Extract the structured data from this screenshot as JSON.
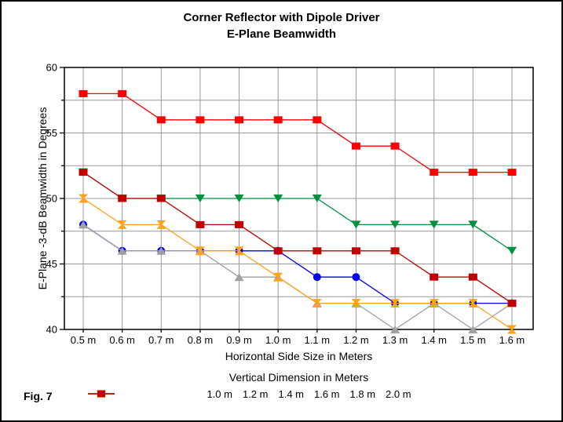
{
  "figure": {
    "title_line1": "Corner Reflector with Dipole Driver",
    "title_line2": "E-Plane Beamwidth",
    "fig_label": "Fig. 7"
  },
  "chart_data": {
    "type": "line",
    "title": "Corner Reflector with Dipole Driver",
    "subtitle": "E-Plane Beamwidth",
    "xlabel": "Horizontal Side Size in Meters",
    "ylabel": "E-Plane -3-dB Beamwidth in Degrees",
    "legend_title": "Vertical Dimension in Meters",
    "legend_position": "bottom",
    "grid": true,
    "categories": [
      "0.5 m",
      "0.6 m",
      "0.7 m",
      "0.8 m",
      "0.9 m",
      "1.0 m",
      "1.1 m",
      "1.2 m",
      "1.3 m",
      "1.4 m",
      "1.5 m",
      "1.6 m"
    ],
    "x_values": [
      0.5,
      0.6,
      0.7,
      0.8,
      0.9,
      1.0,
      1.1,
      1.2,
      1.3,
      1.4,
      1.5,
      1.6
    ],
    "ylim": [
      40,
      60
    ],
    "y_major_ticks": [
      40,
      45,
      50,
      55,
      60
    ],
    "y_grid_interval": 2.5,
    "series": [
      {
        "name": "1.0 m",
        "color": "#FF0000",
        "marker": "square",
        "values": [
          58,
          58,
          56,
          56,
          56,
          56,
          56,
          54,
          54,
          52,
          52,
          52
        ]
      },
      {
        "name": "1.2 m",
        "color": "#009040",
        "marker": "triangle-down",
        "values": [
          52,
          50,
          50,
          50,
          50,
          50,
          50,
          48,
          48,
          48,
          48,
          46
        ]
      },
      {
        "name": "1.4 m",
        "color": "#0000F0",
        "marker": "circle",
        "values": [
          48,
          46,
          46,
          46,
          46,
          46,
          44,
          44,
          42,
          42,
          42,
          42
        ]
      },
      {
        "name": "1.6 m",
        "color": "#A0A0A0",
        "marker": "triangle-up",
        "values": [
          48,
          46,
          46,
          46,
          44,
          44,
          42,
          42,
          40,
          42,
          40,
          42
        ]
      },
      {
        "name": "1.8 m",
        "color": "#FFA21E",
        "marker": "hourglass",
        "values": [
          50,
          48,
          48,
          46,
          46,
          44,
          42,
          42,
          42,
          42,
          42,
          40
        ]
      },
      {
        "name": "2.0 m",
        "color": "#C00000",
        "marker": "square",
        "values": [
          52,
          50,
          50,
          48,
          48,
          46,
          46,
          46,
          46,
          44,
          44,
          42
        ]
      }
    ],
    "colors": {
      "grid": "#999999",
      "axis": "#000000",
      "text": "#000000",
      "background": "#FFFFFF"
    }
  }
}
